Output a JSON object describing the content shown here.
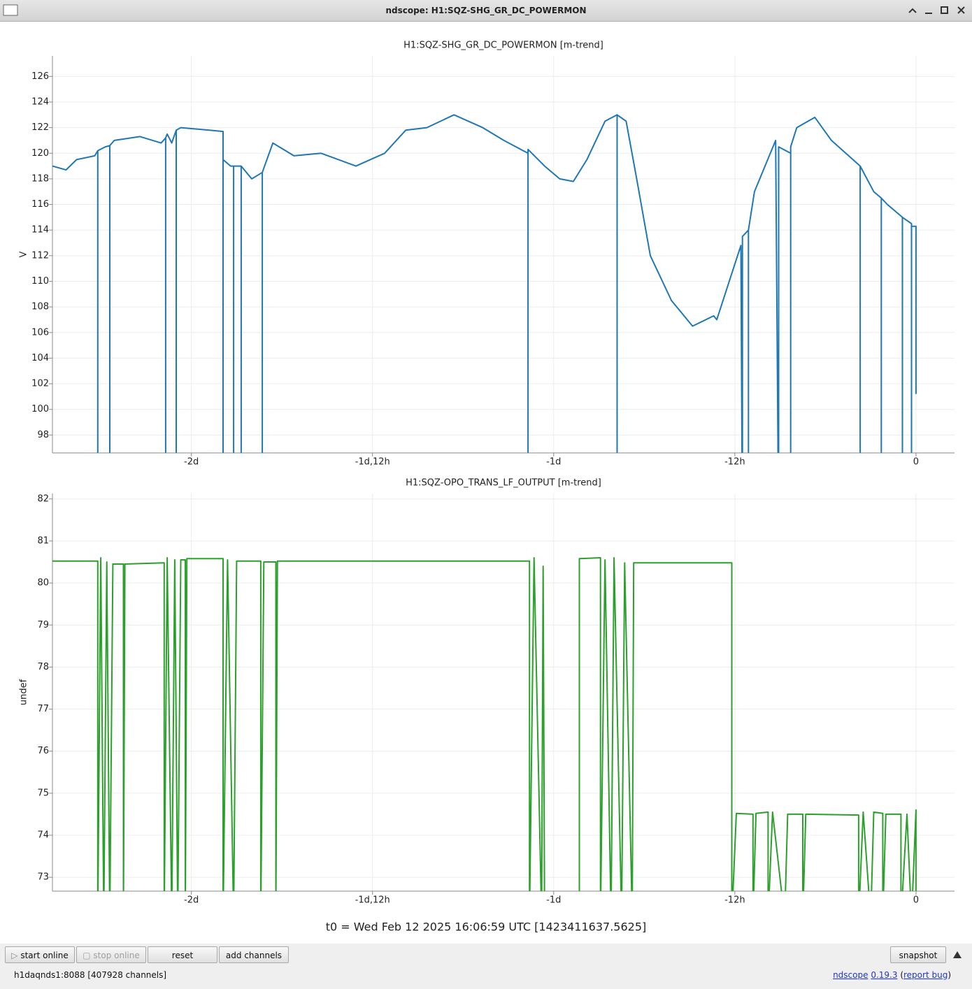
{
  "window": {
    "title": "ndscope: H1:SQZ-SHG_GR_DC_POWERMON"
  },
  "chart_data": [
    {
      "type": "line",
      "title": "H1:SQZ-SHG_GR_DC_POWERMON [m-trend]",
      "ylabel": "V",
      "color": "#1f77b4",
      "grid": true,
      "xlim": [
        -57.2,
        2.55
      ],
      "xticks": [
        {
          "value": -48,
          "label": "-2d"
        },
        {
          "value": -36,
          "label": "-1d,12h"
        },
        {
          "value": -24,
          "label": "-1d"
        },
        {
          "value": -12,
          "label": "-12h"
        },
        0
      ],
      "ylim": [
        96.6,
        127.6
      ],
      "yticks": [
        98,
        100,
        102,
        104,
        106,
        108,
        110,
        112,
        114,
        116,
        118,
        120,
        122,
        124,
        126
      ],
      "x": [
        -57.2,
        -56.3,
        -55.6,
        -54.4,
        -54.2,
        -54.2,
        -54.2,
        -53.7,
        -53.4,
        -53.4,
        -53.4,
        -53.1,
        -51.4,
        -50.0,
        -49.7,
        -49.7,
        -49.7,
        -49.6,
        -49.3,
        -49.0,
        -49.0,
        -49.0,
        -48.7,
        -46.8,
        -45.9,
        -45.9,
        -45.9,
        -45.4,
        -45.2,
        -45.2,
        -45.2,
        -44.7,
        -44.7,
        -44.7,
        -44.0,
        -43.3,
        -43.3,
        -43.3,
        -42.6,
        -41.2,
        -39.4,
        -37.1,
        -35.2,
        -33.8,
        -32.4,
        -30.6,
        -28.7,
        -27.3,
        -25.7,
        -25.7,
        -25.7,
        -24.6,
        -23.6,
        -22.7,
        -21.8,
        -20.6,
        -19.8,
        -19.8,
        -19.8,
        -19.2,
        -18.5,
        -17.6,
        -16.2,
        -14.8,
        -13.4,
        -13.2,
        -11.6,
        -11.5,
        -11.5,
        -11.1,
        -11.1,
        -11.1,
        -10.7,
        -9.3,
        -9.1,
        -9.1,
        -8.3,
        -8.3,
        -8.3,
        -7.9,
        -6.7,
        -5.6,
        -3.7,
        -3.7,
        -3.7,
        -2.8,
        -2.3,
        -2.3,
        -2.3,
        -1.9,
        -0.9,
        -0.9,
        -0.9,
        -0.3,
        -0.3,
        -0.3,
        0,
        0
      ],
      "values": [
        119,
        118.7,
        119.5,
        119.8,
        120.2,
        90,
        120.2,
        120.5,
        120.6,
        90,
        120.6,
        121,
        121.3,
        120.8,
        121.2,
        90,
        121.2,
        121.5,
        120.8,
        121.8,
        90,
        121.8,
        122,
        121.8,
        121.7,
        90,
        119.5,
        119,
        119,
        90,
        119,
        119,
        90,
        119,
        118,
        118.5,
        90,
        118.5,
        120.8,
        119.8,
        120,
        119,
        120,
        121.8,
        122,
        123,
        122,
        121,
        120,
        90,
        120.3,
        119,
        118,
        117.8,
        119.5,
        122.5,
        123,
        90,
        123,
        122.5,
        118,
        112,
        108.5,
        106.5,
        107.3,
        107,
        112.8,
        90,
        113.5,
        114,
        90,
        114,
        117,
        121,
        90,
        120.5,
        120,
        90,
        120.5,
        122,
        122.8,
        121,
        119,
        90,
        119,
        117,
        116.5,
        90,
        116.5,
        116,
        115,
        90,
        115,
        114.5,
        90,
        114.3,
        114.3,
        101.2
      ]
    },
    {
      "type": "line",
      "title": "H1:SQZ-OPO_TRANS_LF_OUTPUT [m-trend]",
      "ylabel": "undef",
      "color": "#2ca02c",
      "grid": true,
      "xlim": [
        -57.2,
        2.55
      ],
      "xticks": [
        {
          "value": -48,
          "label": "-2d"
        },
        {
          "value": -36,
          "label": "-1d,12h"
        },
        {
          "value": -24,
          "label": "-1d"
        },
        {
          "value": -12,
          "label": "-12h"
        },
        0
      ],
      "ylim": [
        72.67,
        82.13
      ],
      "yticks": [
        73,
        74,
        75,
        76,
        77,
        78,
        79,
        80,
        81,
        82
      ],
      "x": [
        -57.2,
        -54.2,
        -54.2,
        -54.0,
        -53.8,
        -53.6,
        -53.4,
        -53.2,
        -52.5,
        -52.5,
        -52.4,
        -49.8,
        -49.8,
        -49.6,
        -49.3,
        -49.1,
        -48.9,
        -48.7,
        -48.4,
        -48.4,
        -48.3,
        -45.9,
        -45.9,
        -45.6,
        -45.2,
        -45.0,
        -43.4,
        -43.4,
        -43.2,
        -42.4,
        -42.4,
        -42.3,
        -25.6,
        -25.6,
        -25.3,
        -24.8,
        -24.7,
        -24.6,
        -24.5,
        -22.3,
        -22.3,
        -20.9,
        -20.9,
        -20.6,
        -20.2,
        -20.0,
        -19.5,
        -19.3,
        -18.8,
        -18.7,
        -12.2,
        -12.2,
        -11.9,
        -10.8,
        -10.8,
        -10.6,
        -9.8,
        -9.8,
        -9.5,
        -8.7,
        -8.5,
        -7.5,
        -7.5,
        -7.3,
        -3.8,
        -3.8,
        -3.5,
        -3.0,
        -2.8,
        -2.2,
        -2.2,
        -2.0,
        -1.0,
        -1.0,
        -0.6,
        -0.3,
        0,
        0
      ],
      "values": [
        80.52,
        80.52,
        72,
        80.6,
        72,
        80.5,
        72,
        80.45,
        80.45,
        72,
        80.45,
        80.48,
        72,
        80.6,
        72,
        80.55,
        72,
        80.55,
        80.55,
        72,
        80.58,
        80.58,
        72,
        80.55,
        72,
        80.52,
        80.52,
        72,
        80.5,
        80.5,
        72,
        80.52,
        80.52,
        72,
        80.6,
        72,
        80.4,
        72,
        null,
        72,
        80.58,
        80.6,
        72,
        80.55,
        72,
        80.6,
        72,
        80.48,
        72,
        80.48,
        80.48,
        72,
        74.52,
        74.5,
        72,
        74.52,
        74.55,
        72,
        74.55,
        72,
        74.5,
        74.5,
        72,
        74.5,
        74.48,
        72,
        74.55,
        72,
        74.55,
        74.52,
        72,
        74.5,
        74.5,
        72,
        74.5,
        72,
        74.6,
        72
      ]
    }
  ],
  "t0": "t0 = Wed Feb 12 2025 16:06:59 UTC [1423411637.5625]",
  "buttons": [
    "start online",
    "stop online",
    "reset",
    "add channels",
    "snapshot"
  ],
  "status": "h1daqnds1:8088  [407928 channels]",
  "footer": {
    "app": "ndscope",
    "version": "0.19.3",
    "open": "(",
    "link": "report bug",
    "close": ")"
  }
}
